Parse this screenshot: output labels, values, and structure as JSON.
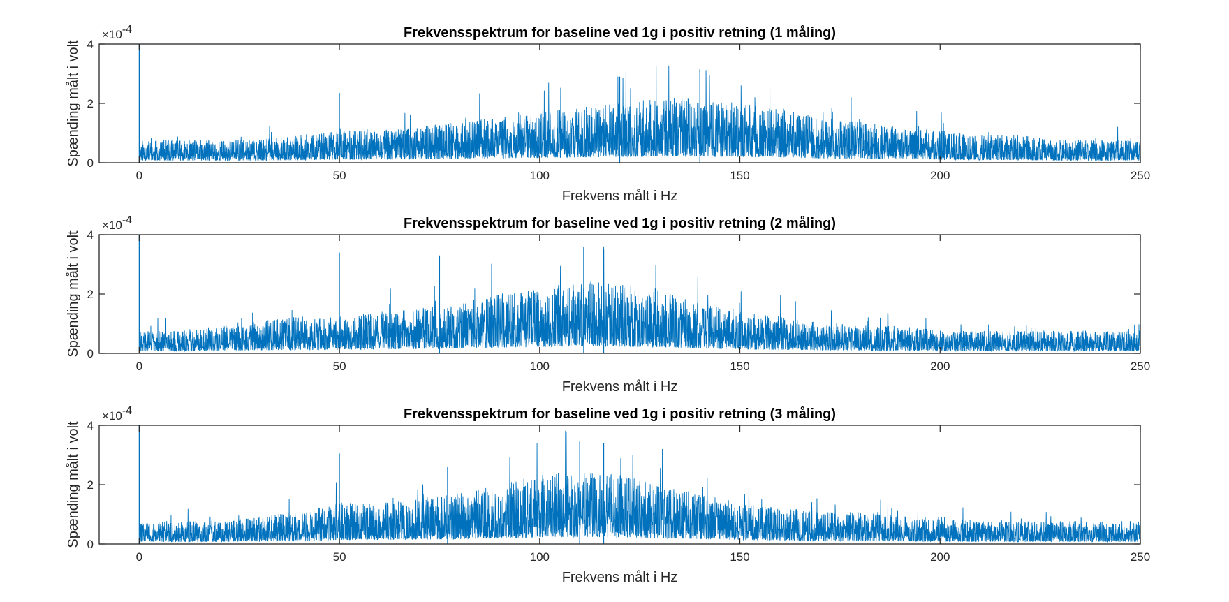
{
  "chart_data": [
    {
      "type": "line",
      "title": "Frekvensspektrum for baseline ved 1g i positiv retning (1 måling)",
      "xlabel": "Frekvens målt i Hz",
      "ylabel": "Spænding målt i volt",
      "xlim": [
        -10,
        250
      ],
      "ylim": [
        0,
        4
      ],
      "y_exponent_label": "×10",
      "y_exponent": "-4",
      "xticks": [
        0,
        50,
        100,
        150,
        200,
        250
      ],
      "yticks": [
        0,
        2,
        4
      ],
      "grid": false,
      "color": "#0072BD",
      "series": [
        {
          "x": [
            0,
            10,
            20,
            30,
            40,
            50,
            60,
            70,
            80,
            90,
            100,
            110,
            120,
            130,
            140,
            150,
            160,
            170,
            180,
            190,
            200,
            210,
            220,
            230,
            240,
            250
          ],
          "values": [
            0.5,
            0.5,
            0.5,
            0.5,
            0.6,
            0.7,
            0.7,
            0.8,
            0.9,
            1.0,
            1.1,
            1.2,
            1.3,
            1.4,
            1.4,
            1.3,
            1.2,
            1.0,
            0.9,
            0.8,
            0.7,
            0.6,
            0.6,
            0.5,
            0.5,
            0.5
          ],
          "spikes": [
            [
              0,
              4.0
            ],
            [
              50,
              2.35
            ],
            [
              120,
              2.9
            ],
            [
              140,
              3.15
            ]
          ]
        }
      ]
    },
    {
      "type": "line",
      "title": "Frekvensspektrum for baseline ved 1g i positiv retning (2 måling)",
      "xlabel": "Frekvens målt i Hz",
      "ylabel": "Spænding målt i volt",
      "xlim": [
        -10,
        250
      ],
      "ylim": [
        0,
        4
      ],
      "y_exponent_label": "×10",
      "y_exponent": "-4",
      "xticks": [
        0,
        50,
        100,
        150,
        200,
        250
      ],
      "yticks": [
        0,
        2,
        4
      ],
      "grid": false,
      "color": "#0072BD",
      "series": [
        {
          "x": [
            0,
            10,
            20,
            30,
            40,
            50,
            60,
            70,
            80,
            90,
            100,
            110,
            120,
            130,
            140,
            150,
            160,
            170,
            180,
            190,
            200,
            210,
            220,
            230,
            240,
            250
          ],
          "values": [
            0.5,
            0.5,
            0.6,
            0.7,
            0.8,
            0.8,
            0.9,
            1.0,
            1.1,
            1.3,
            1.4,
            1.6,
            1.5,
            1.4,
            1.1,
            0.9,
            0.8,
            0.7,
            0.6,
            0.6,
            0.5,
            0.5,
            0.5,
            0.5,
            0.5,
            0.5
          ],
          "spikes": [
            [
              0,
              4.0
            ],
            [
              50,
              3.4
            ],
            [
              75,
              3.3
            ],
            [
              111,
              3.6
            ],
            [
              116,
              3.5
            ]
          ]
        }
      ]
    },
    {
      "type": "line",
      "title": "Frekvensspektrum for baseline ved 1g i positiv retning (3 måling)",
      "xlabel": "Frekvens målt i Hz",
      "ylabel": "Spænding målt i volt",
      "xlim": [
        -10,
        250
      ],
      "ylim": [
        0,
        4
      ],
      "y_exponent_label": "×10",
      "y_exponent": "-4",
      "xticks": [
        0,
        50,
        100,
        150,
        200,
        250
      ],
      "yticks": [
        0,
        2,
        4
      ],
      "grid": false,
      "color": "#0072BD",
      "series": [
        {
          "x": [
            0,
            10,
            20,
            30,
            40,
            50,
            60,
            70,
            80,
            90,
            100,
            110,
            120,
            130,
            140,
            150,
            160,
            170,
            180,
            190,
            200,
            210,
            220,
            230,
            240,
            250
          ],
          "values": [
            0.5,
            0.5,
            0.5,
            0.6,
            0.7,
            0.9,
            0.9,
            1.0,
            1.1,
            1.3,
            1.5,
            1.6,
            1.5,
            1.3,
            1.1,
            0.9,
            0.8,
            0.7,
            0.7,
            0.6,
            0.6,
            0.5,
            0.5,
            0.5,
            0.5,
            0.5
          ],
          "spikes": [
            [
              0,
              4.0
            ],
            [
              50,
              3.05
            ],
            [
              77,
              2.6
            ],
            [
              110,
              3.45
            ],
            [
              116,
              3.4
            ]
          ]
        }
      ]
    }
  ]
}
